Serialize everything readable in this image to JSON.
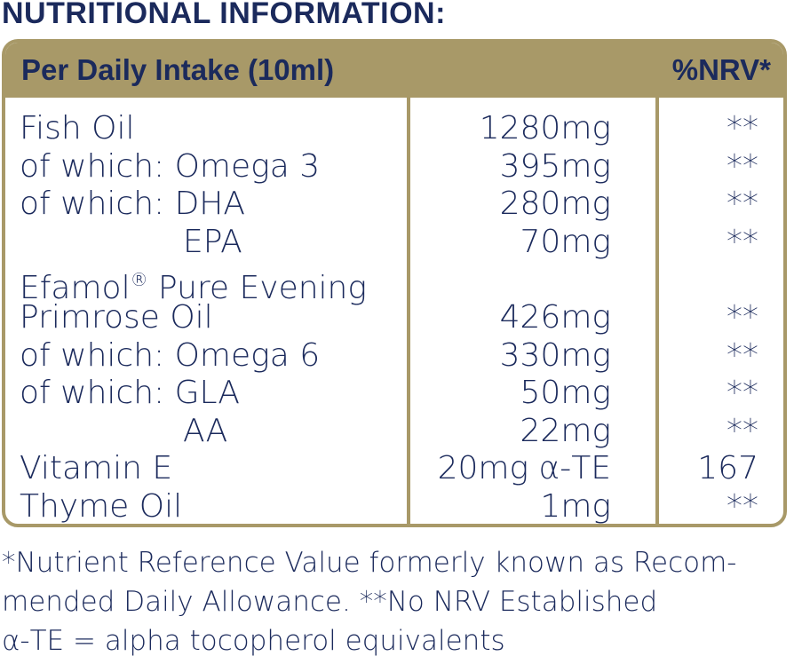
{
  "heading": "NUTRITIONAL INFORMATION:",
  "table": {
    "header_left": "Per Daily Intake (10ml)",
    "header_right": "%NRV*",
    "rows": [
      {
        "name": "Fish Oil",
        "amount": "1280mg",
        "nrv": "**"
      },
      {
        "name": "of which: Omega 3",
        "amount": "395mg",
        "nrv": "**"
      },
      {
        "name": "of which: DHA",
        "amount": "280mg",
        "nrv": "**"
      },
      {
        "name": "EPA",
        "amount": "70mg",
        "nrv": "**"
      },
      {
        "name": "Efamol",
        "name_suffix": " Pure Evening",
        "mark": "®",
        "amount": "",
        "nrv": ""
      },
      {
        "name": "Primrose Oil",
        "amount": "426mg",
        "nrv": "**"
      },
      {
        "name": "of which: Omega 6",
        "amount": "330mg",
        "nrv": "**"
      },
      {
        "name": "of which: GLA",
        "amount": "50mg",
        "nrv": "**"
      },
      {
        "name": "AA",
        "amount": "22mg",
        "nrv": "**"
      },
      {
        "name": "Vitamin E",
        "amount": "20mg α-TE",
        "nrv": "167"
      },
      {
        "name": "Thyme Oil",
        "amount": "1mg",
        "nrv": "**"
      }
    ]
  },
  "footnote": {
    "line1": "*Nutrient Reference Value formerly known as Recom-",
    "line2": "mended Daily Allowance. **No NRV Established",
    "line3": "α-TE = alpha tocopherol equivalents"
  },
  "colors": {
    "gold": "#a89968",
    "navy": "#1b2a5c"
  }
}
